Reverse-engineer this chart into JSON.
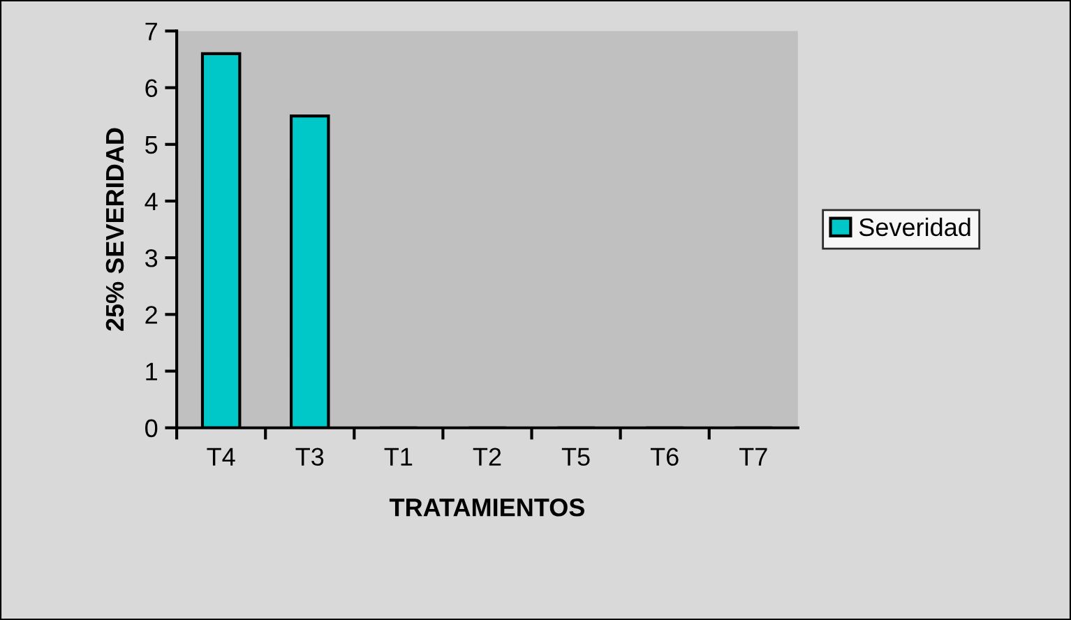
{
  "chart_data": {
    "type": "bar",
    "xlabel": "TRATAMIENTOS",
    "ylabel": "25% SEVERIDAD",
    "categories": [
      "T4",
      "T3",
      "T1",
      "T2",
      "T5",
      "T6",
      "T7"
    ],
    "series": [
      {
        "name": "Severidad",
        "color": "#00c8c8",
        "values": [
          6.6,
          5.5,
          0,
          0,
          0,
          0,
          0
        ]
      }
    ],
    "ylim": [
      0,
      7
    ],
    "yticks": [
      0,
      1,
      2,
      3,
      4,
      5,
      6,
      7
    ],
    "grid": false,
    "legend": "right"
  }
}
